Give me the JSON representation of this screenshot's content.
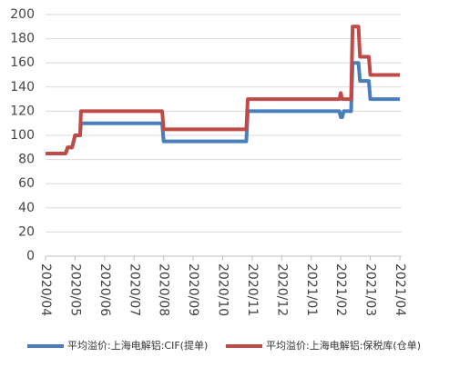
{
  "chart_data": {
    "type": "line",
    "x": [
      0,
      0.68,
      0.75,
      0.9,
      1.0,
      1.17,
      1.2,
      3.95,
      4.0,
      6.8,
      6.85,
      9.95,
      10.0,
      10.05,
      10.1,
      10.35,
      10.4,
      10.6,
      10.65,
      10.95,
      11.0,
      12
    ],
    "series": [
      {
        "name": "平均溢价:上海电解铝:CIF(提单)",
        "color": "#4a7ebb",
        "values": [
          85,
          85,
          90,
          90,
          100,
          100,
          110,
          110,
          95,
          95,
          120,
          120,
          115,
          115,
          120,
          120,
          160,
          160,
          145,
          145,
          130,
          130
        ]
      },
      {
        "name": "平均溢价:上海电解铝:保税库(仓单)",
        "color": "#be4b48",
        "values": [
          85,
          85,
          90,
          90,
          100,
          100,
          120,
          120,
          105,
          105,
          130,
          130,
          135,
          130,
          130,
          130,
          190,
          190,
          165,
          165,
          150,
          150
        ]
      }
    ],
    "xlim": [
      0,
      12
    ],
    "xticks": [
      {
        "value": 0,
        "label": "2020/04"
      },
      {
        "value": 1,
        "label": "2020/05"
      },
      {
        "value": 2,
        "label": "2020/06"
      },
      {
        "value": 3,
        "label": "2020/07"
      },
      {
        "value": 4,
        "label": "2020/08"
      },
      {
        "value": 5,
        "label": "2020/09"
      },
      {
        "value": 6,
        "label": "2020/10"
      },
      {
        "value": 7,
        "label": "2020/11"
      },
      {
        "value": 8,
        "label": "2020/12"
      },
      {
        "value": 9,
        "label": "2021/01"
      },
      {
        "value": 10,
        "label": "2021/02"
      },
      {
        "value": 11,
        "label": "2021/03"
      },
      {
        "value": 12,
        "label": "2021/04"
      }
    ],
    "ylim": [
      0,
      200
    ],
    "yticks": [
      0,
      20,
      40,
      60,
      80,
      100,
      120,
      140,
      160,
      180,
      200
    ],
    "grid": true
  }
}
